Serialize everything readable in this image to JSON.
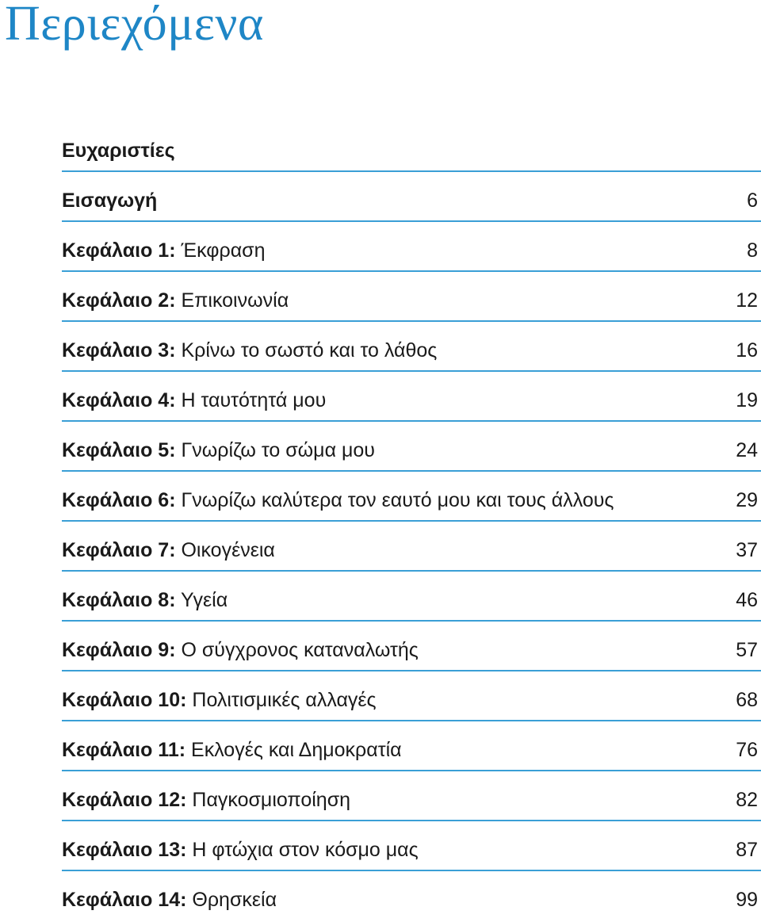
{
  "title": "Περιεχόμενα",
  "entries": [
    {
      "label": "Ευχαριστίες",
      "title": "",
      "page": ""
    },
    {
      "label": "Εισαγωγή",
      "title": "",
      "page": "6"
    },
    {
      "label": "Κεφάλαιο 1:",
      "title": "Έκφραση",
      "page": "8"
    },
    {
      "label": "Κεφάλαιο 2:",
      "title": "Επικοινωνία",
      "page": "12"
    },
    {
      "label": "Κεφάλαιο 3:",
      "title": "Κρίνω το σωστό και το λάθος",
      "page": "16"
    },
    {
      "label": "Κεφάλαιο 4:",
      "title": "Η ταυτότητά μου",
      "page": "19"
    },
    {
      "label": "Κεφάλαιο 5:",
      "title": "Γνωρίζω το σώμα μου",
      "page": "24"
    },
    {
      "label": "Κεφάλαιο 6:",
      "title": "Γνωρίζω καλύτερα τον εαυτό μου και τους άλλους",
      "page": "29"
    },
    {
      "label": "Κεφάλαιο 7:",
      "title": "Οικογένεια",
      "page": "37"
    },
    {
      "label": "Κεφάλαιο 8:",
      "title": "Υγεία",
      "page": "46"
    },
    {
      "label": "Κεφάλαιο 9:",
      "title": "Ο σύγχρονος καταναλωτής",
      "page": "57"
    },
    {
      "label": "Κεφάλαιο 10:",
      "title": "Πολιτισμικές αλλαγές",
      "page": "68"
    },
    {
      "label": "Κεφάλαιο 11:",
      "title": "Εκλογές και Δημοκρατία",
      "page": "76"
    },
    {
      "label": "Κεφάλαιο 12:",
      "title": "Παγκοσμιοποίηση",
      "page": "82"
    },
    {
      "label": "Κεφάλαιο 13:",
      "title": "Η φτώχια στον κόσμο μας",
      "page": "87"
    },
    {
      "label": "Κεφάλαιο 14:",
      "title": "Θρησκεία",
      "page": "99"
    }
  ],
  "colors": {
    "title": "#1e86c6",
    "rule": "#3a9fd6",
    "text": "#1a1a1a"
  }
}
